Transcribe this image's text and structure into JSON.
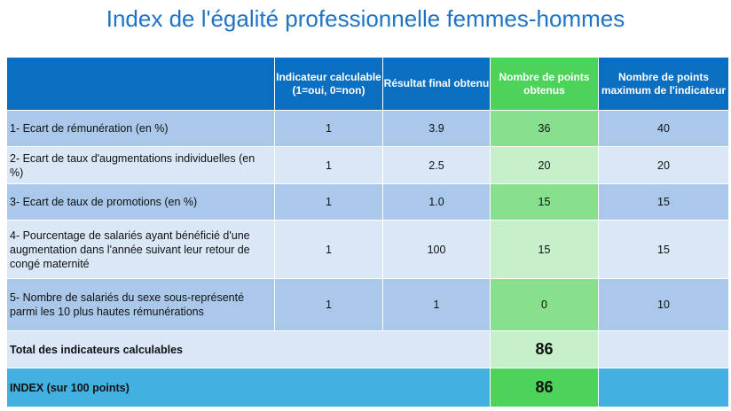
{
  "title": "Index de l'égalité professionnelle femmes-hommes",
  "headers": {
    "indicator": "",
    "calculable": "Indicateur calculable (1=oui, 0=non)",
    "result": "Résultat final obtenu",
    "points": "Nombre de points obtenus",
    "max_points": "Nombre de points maximum de l'indicateur"
  },
  "rows": [
    {
      "label": "1- Ecart de rémunération (en %)",
      "calculable": "1",
      "result": "3.9",
      "points": "36",
      "max": "40"
    },
    {
      "label": "2- Ecart de taux d'augmentations individuelles (en %)",
      "calculable": "1",
      "result": "2.5",
      "points": "20",
      "max": "20"
    },
    {
      "label": "3- Ecart de taux de promotions (en %)",
      "calculable": "1",
      "result": "1.0",
      "points": "15",
      "max": "15"
    },
    {
      "label": "4- Pourcentage de salariés ayant bénéficié d'une augmentation dans l'année suivant leur retour de congé maternité",
      "calculable": "1",
      "result": "100",
      "points": "15",
      "max": "15"
    },
    {
      "label": "5- Nombre de salariés du sexe sous-représenté parmi les 10 plus hautes rémunérations",
      "calculable": "1",
      "result": "1",
      "points": "0",
      "max": "10"
    }
  ],
  "total": {
    "label": "Total des indicateurs calculables",
    "points": "86"
  },
  "index": {
    "label": "INDEX (sur 100 points)",
    "points": "86"
  },
  "colors": {
    "title": "#1f73c4",
    "header_blue": "#0b6fc1",
    "header_green": "#4cd35a",
    "row_dark": "#a9c8ea",
    "row_light": "#d9e7f6",
    "green_dark": "#87e08d",
    "green_light": "#c6f0c9",
    "index_blue": "#43b0e2"
  }
}
